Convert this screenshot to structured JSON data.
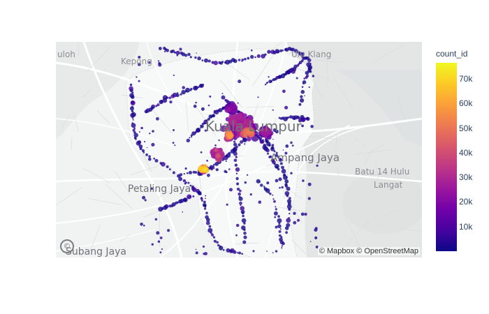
{
  "map": {
    "attribution": "© Mapbox © OpenStreetMap",
    "logo": "mapbox-logo-icon",
    "places": [
      {
        "name": "Kuala Lumpur",
        "kind": "major"
      },
      {
        "name": "Ampang Jaya",
        "kind": "city"
      },
      {
        "name": "Petaling Jaya",
        "kind": "city"
      },
      {
        "name": "Subang Jaya",
        "kind": "city"
      },
      {
        "name": "Kepong",
        "kind": "minor"
      },
      {
        "name": "Ulu Klang",
        "kind": "minor"
      },
      {
        "name": "Batu 14 Hulu",
        "kind": "minor"
      },
      {
        "name": "Langat",
        "kind": "minor"
      },
      {
        "name": "uloh",
        "kind": "minor"
      }
    ]
  },
  "colorbar": {
    "title": "count_id",
    "ticks": [
      "10k",
      "20k",
      "30k",
      "40k",
      "50k",
      "60k",
      "70k"
    ],
    "tick_values": [
      10000,
      20000,
      30000,
      40000,
      50000,
      60000,
      70000
    ],
    "range": [
      0,
      76500
    ],
    "colorscale": [
      "#0d0887",
      "#46039f",
      "#7201a8",
      "#9c179e",
      "#bd3786",
      "#d8576b",
      "#ed7953",
      "#fb9f3a",
      "#fdca26",
      "#f0f921"
    ]
  },
  "chart_data": {
    "type": "scatter",
    "subtype": "scatter_mapbox",
    "color_variable": "count_id",
    "color_range": [
      0,
      76500
    ],
    "hotspots": [
      {
        "area": "Kuala Lumpur centre",
        "count_id": 45000
      },
      {
        "area": "Kuala Lumpur west",
        "count_id": 55000
      },
      {
        "area": "Petaling Jaya north",
        "count_id": 75000
      },
      {
        "area": "Ampang Jaya west",
        "count_id": 30000
      }
    ]
  }
}
